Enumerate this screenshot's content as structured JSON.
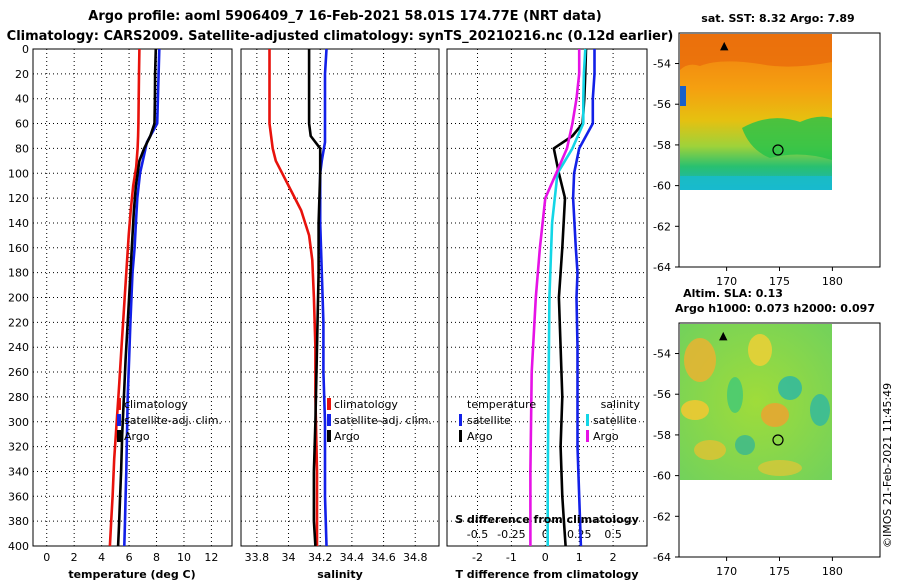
{
  "title": {
    "line1": "Argo profile: aoml 5906409_7 16-Feb-2021 58.01S 174.77E (NRT data)",
    "line2": "Climatology: CARS2009. Satellite-adjusted climatology: synTS_20210216.nc (0.12d earlier)"
  },
  "colors": {
    "climatology": "#e8120c",
    "satellite": "#1220e8",
    "argo": "#000000",
    "t_diff": "#13d6e6",
    "s_diff": "#e612e6"
  },
  "depth_ticks": [
    "0",
    "20",
    "40",
    "60",
    "80",
    "100",
    "120",
    "140",
    "160",
    "180",
    "200",
    "220",
    "240",
    "260",
    "280",
    "300",
    "320",
    "340",
    "360",
    "380",
    "400"
  ],
  "chart_data": [
    {
      "type": "line",
      "name": "temperature-profile",
      "xlabel": "temperature (deg C)",
      "ylabel": "depth",
      "xlim": [
        -1,
        13.5
      ],
      "ylim": [
        400,
        0
      ],
      "x_ticks": [
        "0",
        "2",
        "4",
        "6",
        "8",
        "10",
        "12"
      ],
      "series": [
        {
          "name": "climatology",
          "color": "#e8120c",
          "x": [
            6.75,
            6.72,
            6.7,
            6.68,
            6.66,
            6.62,
            6.52,
            6.3,
            6.12,
            5.97,
            5.8,
            5.62,
            5.45,
            5.28,
            5.1,
            4.92,
            4.8,
            4.7,
            4.6
          ],
          "y": [
            0,
            20,
            40,
            60,
            70,
            80,
            95,
            110,
            130,
            150,
            180,
            210,
            240,
            270,
            300,
            330,
            360,
            380,
            400
          ]
        },
        {
          "name": "satellite-adj. clim.",
          "color": "#1220e8",
          "x": [
            8.2,
            8.15,
            8.1,
            8.05,
            7.3,
            7.0,
            6.8,
            6.6,
            6.5,
            6.4,
            6.25,
            6.1,
            6.0,
            5.9,
            5.85,
            5.8,
            5.75,
            5.7,
            5.65
          ],
          "y": [
            0,
            20,
            40,
            60,
            75,
            90,
            100,
            120,
            140,
            160,
            180,
            220,
            250,
            280,
            310,
            340,
            360,
            380,
            400
          ]
        },
        {
          "name": "Argo",
          "color": "#000000",
          "x": [
            7.95,
            7.9,
            7.88,
            7.85,
            7.55,
            7.1,
            6.75,
            6.5,
            6.35,
            6.2,
            6.05,
            5.9,
            5.75,
            5.62,
            5.5,
            5.42,
            5.35,
            5.28,
            5.2
          ],
          "y": [
            0,
            20,
            40,
            60,
            70,
            80,
            90,
            110,
            130,
            160,
            190,
            220,
            250,
            280,
            310,
            340,
            360,
            380,
            400
          ]
        }
      ],
      "legend": [
        "climatology",
        "satellite-adj. clim.",
        "Argo"
      ]
    },
    {
      "type": "line",
      "name": "salinity-profile",
      "xlabel": "salinity",
      "ylabel": "depth",
      "xlim": [
        33.7,
        34.95
      ],
      "ylim": [
        400,
        0
      ],
      "x_ticks": [
        "33.8",
        "34",
        "34.2",
        "34.4",
        "34.6",
        "34.8"
      ],
      "series": [
        {
          "name": "climatology",
          "color": "#e8120c",
          "x": [
            33.88,
            33.88,
            33.88,
            33.89,
            33.9,
            33.92,
            33.96,
            34.02,
            34.08,
            34.13,
            34.15,
            34.16,
            34.17,
            34.17,
            34.18,
            34.18
          ],
          "y": [
            0,
            40,
            60,
            70,
            80,
            90,
            100,
            115,
            130,
            150,
            170,
            200,
            240,
            280,
            340,
            400
          ]
        },
        {
          "name": "satellite-adj. clim.",
          "color": "#1220e8",
          "x": [
            34.24,
            34.23,
            34.23,
            34.23,
            34.21,
            34.2,
            34.2,
            34.21,
            34.22,
            34.22,
            34.23,
            34.23,
            34.24
          ],
          "y": [
            0,
            20,
            60,
            75,
            90,
            100,
            140,
            180,
            220,
            260,
            300,
            360,
            400
          ]
        },
        {
          "name": "Argo",
          "color": "#000000",
          "x": [
            34.13,
            34.13,
            34.13,
            34.14,
            34.2,
            34.2,
            34.19,
            34.19,
            34.18,
            34.17,
            34.16,
            34.16,
            34.17
          ],
          "y": [
            0,
            20,
            60,
            70,
            80,
            100,
            140,
            180,
            240,
            300,
            340,
            380,
            400
          ]
        }
      ],
      "legend": [
        "climatology",
        "satellite-adj. clim.",
        "Argo"
      ]
    },
    {
      "type": "line",
      "name": "difference-profile",
      "xlabel": "T difference from climatology",
      "x2label": "S difference from climatology",
      "ylabel": "depth",
      "xlim": [
        -2.9,
        3.0
      ],
      "x2lim": [
        -0.725,
        0.75
      ],
      "ylim": [
        400,
        0
      ],
      "x_ticks": [
        "-2",
        "-1",
        "0",
        "1",
        "2"
      ],
      "x2_ticks": [
        "-0.5",
        "-0.25",
        "0",
        "0.25",
        "0.5"
      ],
      "series": [
        {
          "name": "temperature satellite",
          "color": "#1220e8",
          "x": [
            1.45,
            1.45,
            1.4,
            1.4,
            1.0,
            0.85,
            0.82,
            0.9,
            0.95,
            0.92,
            0.95,
            0.95,
            0.95,
            1.0,
            1.05
          ],
          "y": [
            0,
            20,
            40,
            60,
            80,
            100,
            120,
            160,
            180,
            200,
            240,
            280,
            320,
            360,
            400
          ]
        },
        {
          "name": "temperature Argo",
          "color": "#000000",
          "x": [
            1.2,
            1.18,
            1.15,
            1.1,
            0.8,
            0.25,
            0.4,
            0.58,
            0.5,
            0.4,
            0.45,
            0.5,
            0.45,
            0.5,
            0.55,
            0.6
          ],
          "y": [
            0,
            20,
            40,
            60,
            70,
            80,
            100,
            120,
            160,
            200,
            240,
            280,
            320,
            360,
            380,
            400
          ]
        },
        {
          "name": "salinity satellite",
          "color": "#13d6e6",
          "x": [
            0.295,
            0.285,
            0.28,
            0.28,
            0.2,
            0.09,
            0.05,
            0.03,
            0.025,
            0.02,
            0.018,
            0.018
          ],
          "y": [
            0,
            20,
            40,
            60,
            80,
            100,
            140,
            200,
            260,
            320,
            360,
            400
          ]
        },
        {
          "name": "salinity Argo",
          "color": "#e612e6",
          "x": [
            0.25,
            0.25,
            0.23,
            0.2,
            0.16,
            0.08,
            0.0,
            -0.04,
            -0.07,
            -0.1,
            -0.11,
            -0.11
          ],
          "y": [
            0,
            20,
            40,
            60,
            80,
            100,
            120,
            160,
            200,
            260,
            340,
            400
          ]
        }
      ],
      "legend_temperature": {
        "title": "temperature",
        "items": [
          "satellite",
          "Argo"
        ]
      },
      "legend_salinity": {
        "title": "salinity",
        "items": [
          "satellite",
          "Argo"
        ]
      }
    },
    {
      "type": "heatmap",
      "name": "sst-map",
      "title": "sat. SST: 8.32 Argo: 7.89",
      "x_ticks": [
        "170",
        "175",
        "180"
      ],
      "y_ticks": [
        "-54",
        "-56",
        "-58",
        "-60",
        "-62",
        "-64"
      ],
      "xlim": [
        165.5,
        184.5
      ],
      "ylim": [
        -64,
        -52.5
      ],
      "float_position": {
        "lon": 174.77,
        "lat": -58.01
      }
    },
    {
      "type": "heatmap",
      "name": "sla-map",
      "title": "Altim. SLA: 0.13",
      "subtitle": "Argo h1000: 0.073 h2000: 0.097",
      "x_ticks": [
        "170",
        "175",
        "180"
      ],
      "y_ticks": [
        "-54",
        "-56",
        "-58",
        "-60",
        "-62",
        "-64"
      ],
      "xlim": [
        165.5,
        184.5
      ],
      "ylim": [
        -64,
        -52.5
      ],
      "float_position": {
        "lon": 174.77,
        "lat": -58.01
      }
    }
  ],
  "credit": "©IMOS 21-Feb-2021 11:45:49"
}
